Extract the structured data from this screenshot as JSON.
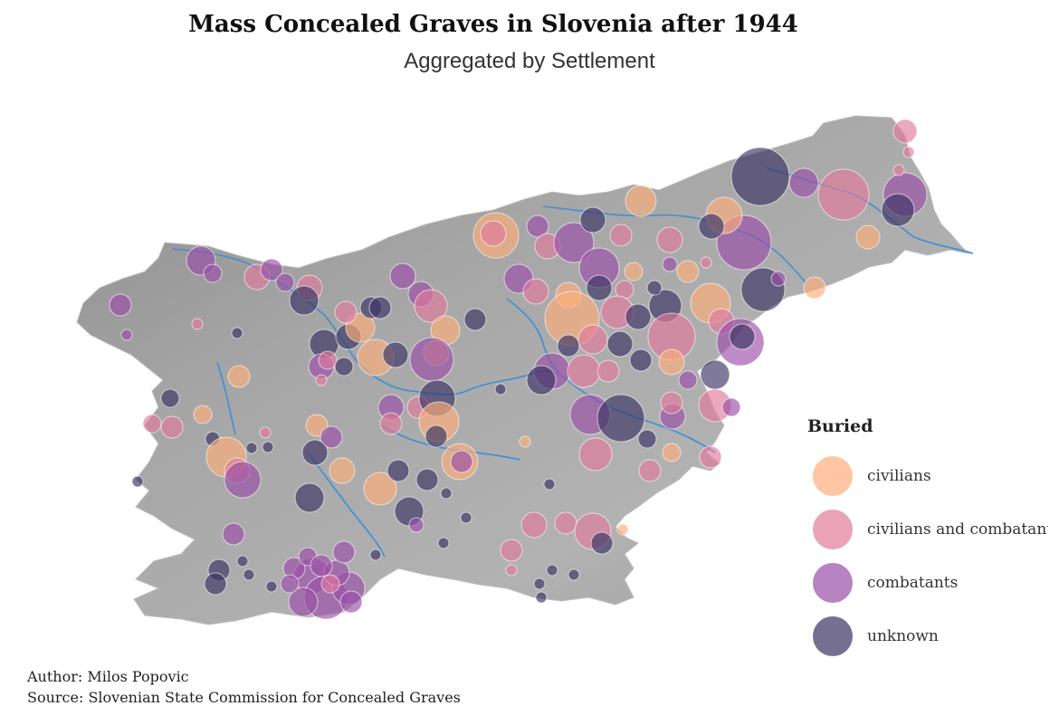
{
  "title": "Mass Concealed Graves in Slovenia after 1944",
  "subtitle": "Aggregated by Settlement",
  "legend": {
    "title": "Buried",
    "items": [
      {
        "label": "civilians",
        "color": "#fdae7a"
      },
      {
        "label": "civilians and combatants",
        "color": "#e17a9b"
      },
      {
        "label": "combatants",
        "color": "#9a4ea8"
      },
      {
        "label": "unknown",
        "color": "#3b3362"
      }
    ]
  },
  "caption": {
    "author": "Author: Milos Popovic",
    "source": "Source: Slovenian State Commission for Concealed Graves"
  },
  "colors": {
    "terrain": "#a9a9a9",
    "river": "#3d8fd6",
    "civilians": "#fdae7a",
    "mixed": "#e17a9b",
    "combatants": "#9a4ea8",
    "unknown": "#3b3362"
  }
}
